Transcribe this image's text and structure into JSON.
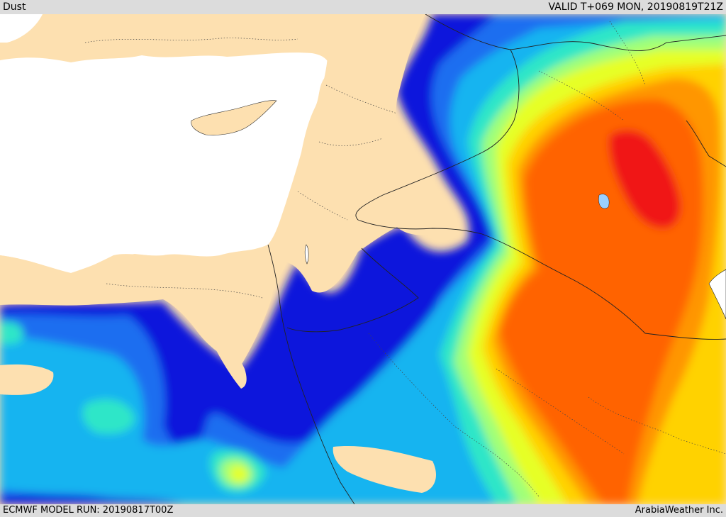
{
  "header": {
    "field": "Dust",
    "valid": "VALID T+069 MON, 20190819T21Z"
  },
  "footer": {
    "model_run": "ECMWF MODEL RUN: 20190817T00Z",
    "credit": "ArabiaWeather Inc."
  },
  "colors": {
    "sea": "#ffffff",
    "land": "#fde0b0",
    "dust_levels": [
      "#0a14dc",
      "#1e6ef0",
      "#14b4f0",
      "#2ee6c8",
      "#a0ff78",
      "#e6ff28",
      "#ffd200",
      "#ff9600",
      "#ff6400",
      "#f01414"
    ]
  }
}
